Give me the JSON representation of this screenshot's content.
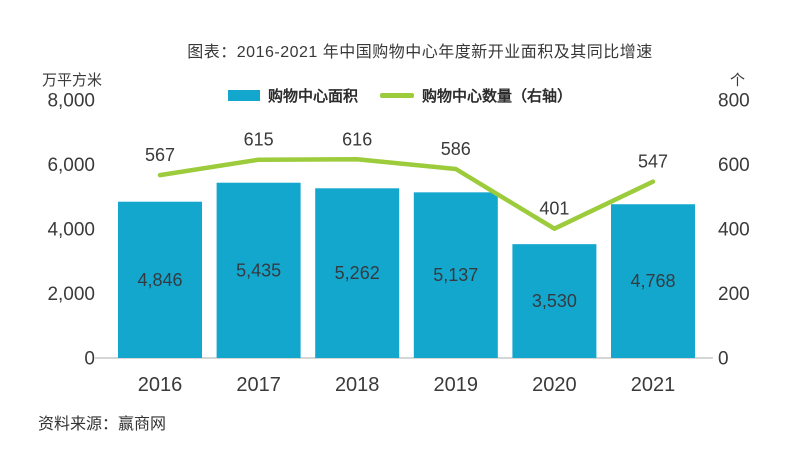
{
  "chart_data": {
    "type": "bar+line",
    "title": "图表：2016-2021 年中国购物中心年度新开业面积及其同比增速",
    "source": "资料来源：赢商网",
    "categories": [
      "2016",
      "2017",
      "2018",
      "2019",
      "2020",
      "2021"
    ],
    "series": [
      {
        "name": "购物中心面积",
        "type": "bar",
        "axis": "left",
        "color": "#14a7ce",
        "values": [
          4846,
          5435,
          5262,
          5137,
          3530,
          4768
        ],
        "labels": [
          "4,846",
          "5,435",
          "5,262",
          "5,137",
          "3,530",
          "4,768"
        ]
      },
      {
        "name": "购物中心数量（右轴）",
        "type": "line",
        "axis": "right",
        "color": "#9ccb3b",
        "values": [
          567,
          615,
          616,
          586,
          401,
          547
        ],
        "labels": [
          "567",
          "615",
          "616",
          "586",
          "401",
          "547"
        ]
      }
    ],
    "left_axis": {
      "unit": "万平方米",
      "min": 0,
      "max": 8000,
      "ticks": [
        {
          "label": "8,000",
          "value": 8000
        },
        {
          "label": "6,000",
          "value": 6000
        },
        {
          "label": "4,000",
          "value": 4000
        },
        {
          "label": "2,000",
          "value": 2000
        },
        {
          "label": "0",
          "value": 0
        }
      ]
    },
    "right_axis": {
      "unit": "个",
      "min": 0,
      "max": 800,
      "ticks": [
        {
          "label": "800",
          "value": 800
        },
        {
          "label": "600",
          "value": 600
        },
        {
          "label": "400",
          "value": 400
        },
        {
          "label": "200",
          "value": 200
        },
        {
          "label": "0",
          "value": 0
        }
      ]
    },
    "legend_position": "top",
    "grid": false
  }
}
